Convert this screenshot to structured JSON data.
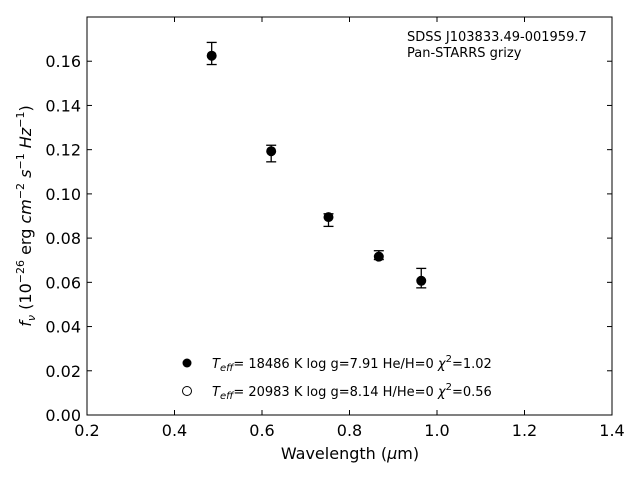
{
  "chart_data": {
    "type": "scatter",
    "title": "",
    "xlabel": "Wavelength (μm)",
    "ylabel": "f_ν (10^−26 erg cm^−2 s^−1 Hz^−1)",
    "xlim": [
      0.2,
      1.4
    ],
    "ylim": [
      0.0,
      0.18
    ],
    "xticks": [
      "0.2",
      "0.4",
      "0.6",
      "0.8",
      "1.0",
      "1.2",
      "1.4"
    ],
    "yticks": [
      "0.00",
      "0.02",
      "0.04",
      "0.06",
      "0.08",
      "0.10",
      "0.12",
      "0.14",
      "0.16"
    ],
    "grid": false,
    "annotation": [
      "SDSS J103833.49-001959.7",
      "Pan-STARRS grizy"
    ],
    "observed": {
      "x": [
        0.485,
        0.621,
        0.752,
        0.867,
        0.964
      ],
      "y": [
        0.1628,
        0.1195,
        0.0898,
        0.0718,
        0.061
      ],
      "err_low": [
        0.1585,
        0.1145,
        0.0853,
        0.0703,
        0.0575
      ],
      "err_high": [
        0.1685,
        0.122,
        0.091,
        0.0743,
        0.0663
      ]
    },
    "series": [
      {
        "marker": "filled",
        "values": [
          0.1625,
          0.1193,
          0.0895,
          0.0716,
          0.0607
        ]
      },
      {
        "marker": "open",
        "values": [
          0.1625,
          0.1193,
          0.0895,
          0.0716,
          0.0607
        ]
      }
    ],
    "legend": {
      "placement": "lower-center",
      "entries": [
        {
          "marker": "filled",
          "teff": "18486 K",
          "logg": "log g=7.91",
          "ratio": "He/H=0",
          "chi2": "=1.02"
        },
        {
          "marker": "open",
          "teff": "20983 K",
          "logg": "log g=8.14",
          "ratio": "H/He=0",
          "chi2": "=0.56"
        }
      ]
    }
  }
}
